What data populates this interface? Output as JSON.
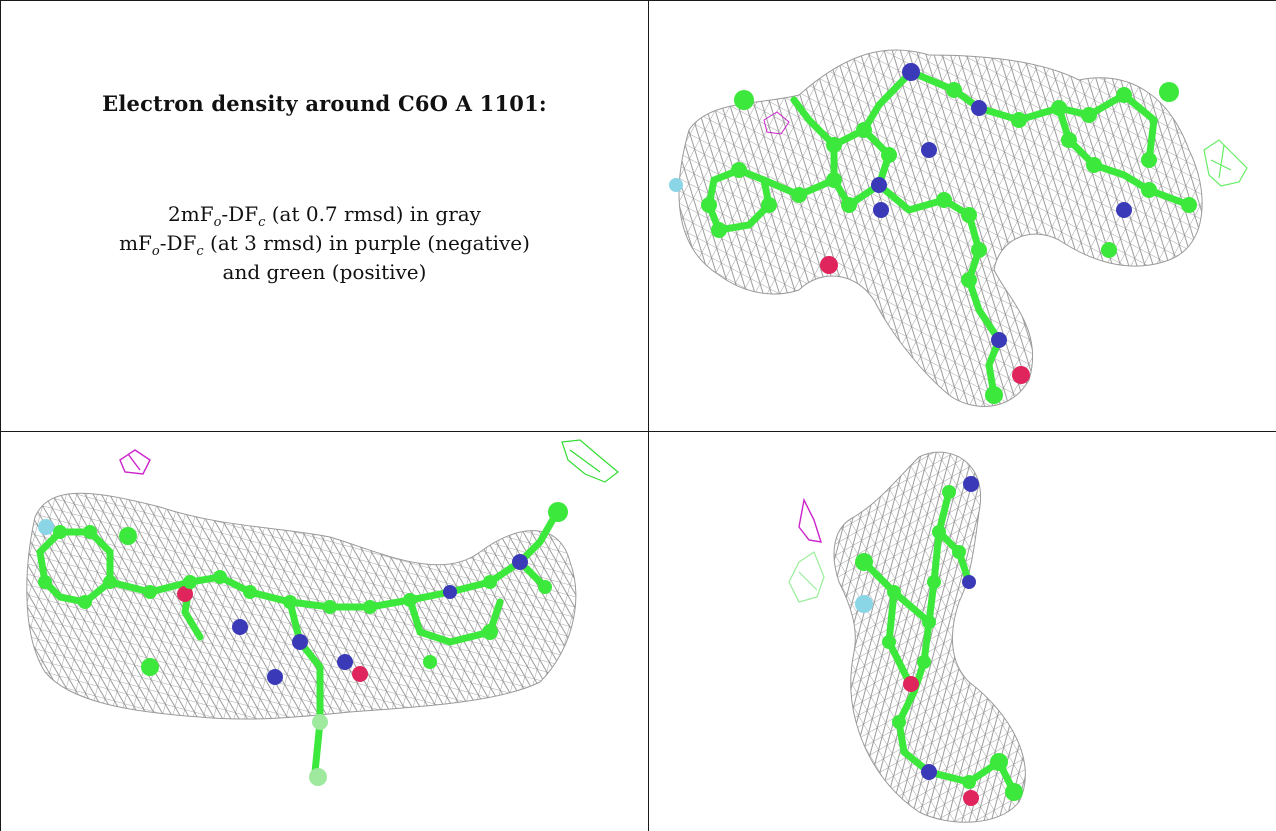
{
  "panel_text": {
    "title": "Electron density around C6O A 1101:",
    "line1": {
      "a": "2mF",
      "a_sub": "o",
      "b": "-DF",
      "b_sub": "c",
      "rest": " (at 0.7 rmsd) in gray"
    },
    "line2": {
      "a": "mF",
      "a_sub": "o",
      "b": "-DF",
      "b_sub": "c",
      "rest": " (at 3 rmsd) in purple (negative)"
    },
    "line3": "and green (positive)"
  },
  "colors": {
    "mesh_2fofc": "#8a8a8a",
    "diff_negative": "#cc22cc",
    "diff_positive": "#33dd33",
    "carbon": "#3de83d",
    "nitrogen": "#3a3ab8",
    "oxygen": "#e0245c",
    "fluorine": "#8ad6e6",
    "border": "#1a1a1a"
  },
  "views": [
    "view-top-right",
    "view-bottom-left",
    "view-bottom-right"
  ]
}
